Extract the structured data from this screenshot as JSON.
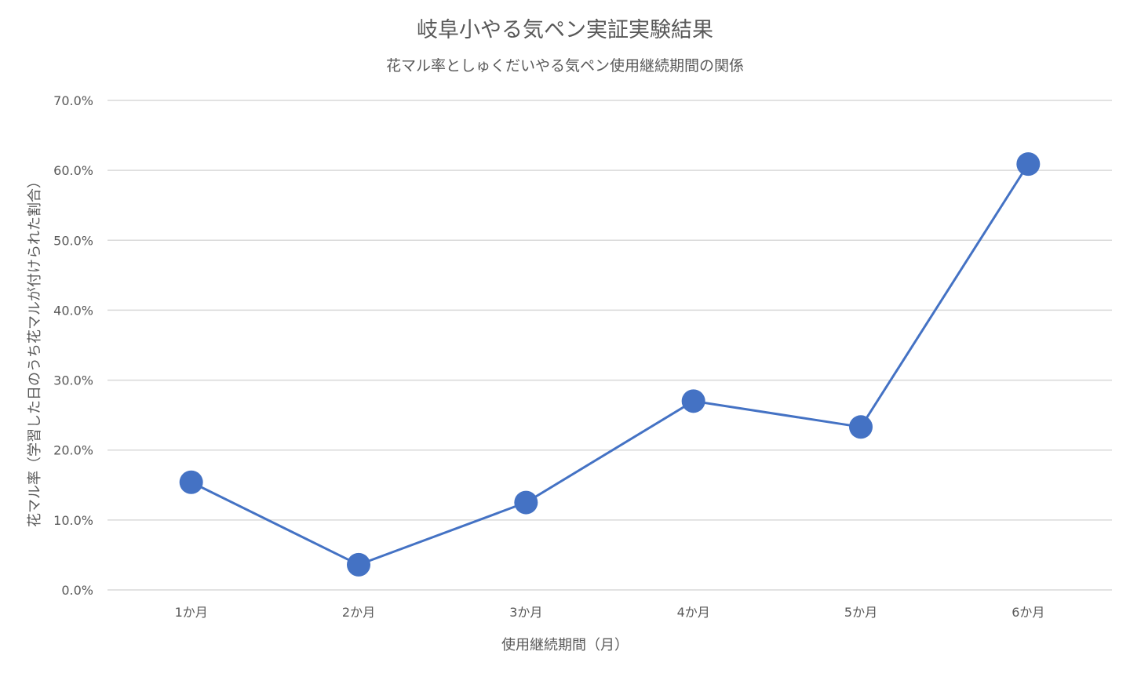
{
  "chart_data": {
    "type": "line",
    "title": "岐阜小やる気ペン実証実験結果",
    "subtitle": "花マル率としゅくだいやる気ペン使用継続期間の関係",
    "xlabel": "使用継続期間（月）",
    "ylabel": "花マル率（学習した日のうち花マルが付けられた割合）",
    "categories": [
      "1か月",
      "2か月",
      "3か月",
      "4か月",
      "5か月",
      "6か月"
    ],
    "series": [
      {
        "values": [
          0.154,
          0.036,
          0.125,
          0.27,
          0.233,
          0.609
        ]
      }
    ],
    "ylim": [
      0,
      0.7
    ],
    "yticks": [
      0,
      0.1,
      0.2,
      0.3,
      0.4,
      0.5,
      0.6,
      0.7
    ],
    "ytick_labels": [
      "0.0%",
      "10.0%",
      "20.0%",
      "30.0%",
      "40.0%",
      "50.0%",
      "60.0%",
      "70.0%"
    ],
    "grid": true,
    "legend": "none",
    "color": "#4472c4"
  }
}
